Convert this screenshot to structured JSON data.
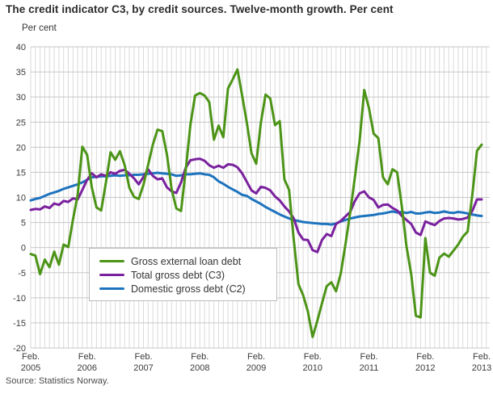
{
  "title": "The credit indicator C3, by credit sources. Twelve-month growth. Per cent",
  "y_axis_label": "Per cent",
  "source": "Source: Statistics Norway.",
  "colors": {
    "grid_vertical": "#dadada",
    "grid_horizontal": "#c7c7c7",
    "tick_text": "#3a3a3a",
    "background": "#ffffff"
  },
  "chart_data": {
    "type": "line",
    "title": "The credit indicator C3, by credit sources. Twelve-month growth. Per cent",
    "ylabel": "Per cent",
    "ylim": [
      -20,
      40
    ],
    "grid": true,
    "legend_position": "inside-lower-left",
    "x_frequency": "monthly",
    "x_start": "Feb. 2005",
    "x_end": "Feb. 2013",
    "y_ticks": [
      40,
      35,
      30,
      25,
      20,
      15,
      10,
      5,
      0,
      -5,
      -10,
      -15,
      -20
    ],
    "x_ticks": [
      {
        "top": "Feb.",
        "bottom": "2005"
      },
      {
        "top": "Feb.",
        "bottom": "2006"
      },
      {
        "top": "Feb.",
        "bottom": "2007"
      },
      {
        "top": "Feb.",
        "bottom": "2008"
      },
      {
        "top": "Feb.",
        "bottom": "2009"
      },
      {
        "top": "Feb.",
        "bottom": "2010"
      },
      {
        "top": "Feb.",
        "bottom": "2011"
      },
      {
        "top": "Feb.",
        "bottom": "2012"
      },
      {
        "top": "Feb.",
        "bottom": "2013"
      }
    ],
    "series": [
      {
        "name": "Gross external loan debt",
        "color": "#4c9417",
        "values": [
          -1.3,
          -1.6,
          -5.3,
          -2.4,
          -3.9,
          -0.8,
          -3.4,
          0.6,
          0.1,
          5.6,
          10.5,
          20.1,
          18.5,
          12.0,
          8.0,
          7.4,
          12.9,
          19.0,
          17.5,
          19.2,
          16.4,
          11.9,
          10.1,
          9.7,
          12.5,
          16.5,
          20.5,
          23.5,
          23.2,
          18.5,
          11.6,
          7.8,
          7.3,
          15.4,
          24.5,
          30.3,
          30.8,
          30.3,
          29.0,
          21.5,
          24.3,
          22.0,
          31.7,
          33.5,
          35.5,
          30.3,
          24.9,
          18.8,
          16.7,
          24.9,
          30.5,
          29.7,
          24.4,
          25.2,
          13.6,
          11.5,
          1.5,
          -7.3,
          -9.5,
          -12.7,
          -17.8,
          -14.6,
          -11.1,
          -7.7,
          -6.9,
          -8.7,
          -5.2,
          0.6,
          7.0,
          14.0,
          21.2,
          31.4,
          27.8,
          22.7,
          21.8,
          14.0,
          12.6,
          15.6,
          15.0,
          8.2,
          0.2,
          -5.3,
          -13.6,
          -13.9,
          1.9,
          -5.0,
          -5.6,
          -2.0,
          -1.2,
          -1.8,
          -0.6,
          0.6,
          2.2,
          3.2,
          10.5,
          19.3,
          20.5
        ]
      },
      {
        "name": "Total gross debt (C3)",
        "color": "#7a219e",
        "values": [
          7.5,
          7.7,
          7.6,
          8.2,
          7.9,
          8.8,
          8.5,
          9.3,
          9.1,
          9.8,
          9.6,
          11.5,
          13.5,
          14.8,
          14.0,
          14.6,
          14.3,
          15.0,
          14.7,
          15.3,
          15.5,
          14.7,
          13.8,
          12.6,
          14.1,
          15.6,
          14.3,
          13.6,
          13.8,
          12.0,
          11.2,
          10.9,
          13.0,
          15.9,
          17.4,
          17.6,
          17.7,
          17.3,
          16.4,
          15.9,
          16.3,
          15.9,
          16.6,
          16.5,
          16.0,
          14.8,
          13.1,
          11.4,
          10.8,
          12.1,
          11.9,
          11.4,
          10.2,
          9.4,
          8.2,
          7.2,
          5.8,
          3.0,
          1.6,
          1.5,
          -0.5,
          -0.9,
          1.5,
          2.7,
          2.3,
          4.7,
          5.3,
          6.2,
          7.1,
          9.3,
          10.8,
          11.2,
          10.0,
          9.5,
          8.0,
          8.5,
          8.6,
          7.9,
          7.4,
          6.3,
          5.5,
          4.7,
          3.0,
          2.5,
          5.2,
          4.8,
          4.5,
          5.3,
          5.8,
          5.9,
          5.8,
          5.6,
          5.7,
          6.0,
          7.3,
          9.6,
          9.6
        ]
      },
      {
        "name": "Domestic gross debt (C2)",
        "color": "#1e73be",
        "values": [
          9.4,
          9.7,
          9.9,
          10.3,
          10.7,
          11.0,
          11.3,
          11.7,
          12.0,
          12.3,
          12.6,
          13.0,
          13.5,
          14.0,
          14.1,
          14.2,
          14.2,
          14.3,
          14.4,
          14.3,
          14.4,
          14.4,
          14.5,
          14.5,
          14.6,
          14.7,
          14.8,
          14.9,
          14.8,
          14.7,
          14.6,
          14.3,
          14.4,
          14.6,
          14.6,
          14.7,
          14.8,
          14.6,
          14.5,
          14.0,
          13.2,
          12.7,
          12.1,
          11.6,
          11.1,
          10.5,
          10.3,
          9.7,
          9.2,
          8.7,
          8.1,
          7.6,
          7.1,
          6.6,
          6.2,
          5.8,
          5.5,
          5.3,
          5.1,
          5.0,
          4.9,
          4.8,
          4.7,
          4.7,
          4.6,
          4.8,
          5.2,
          5.5,
          5.8,
          6.0,
          6.2,
          6.3,
          6.4,
          6.5,
          6.7,
          6.8,
          7.0,
          7.2,
          7.0,
          7.1,
          6.9,
          7.1,
          6.8,
          6.8,
          7.0,
          7.1,
          6.9,
          7.0,
          7.2,
          7.0,
          6.9,
          7.1,
          7.0,
          6.8,
          6.6,
          6.4,
          6.3
        ]
      }
    ]
  }
}
